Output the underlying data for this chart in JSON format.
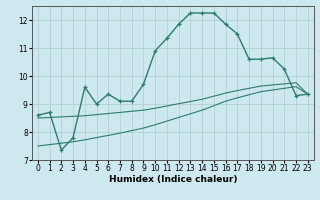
{
  "xlabel": "Humidex (Indice chaleur)",
  "xlim": [
    -0.5,
    23.5
  ],
  "ylim": [
    7,
    12.5
  ],
  "yticks": [
    7,
    8,
    9,
    10,
    11,
    12
  ],
  "xticks": [
    0,
    1,
    2,
    3,
    4,
    5,
    6,
    7,
    8,
    9,
    10,
    11,
    12,
    13,
    14,
    15,
    16,
    17,
    18,
    19,
    20,
    21,
    22,
    23
  ],
  "background_color": "#cde8ee",
  "grid_color": "#aacccc",
  "line_color": "#2d7d6e",
  "line1_x": [
    0,
    1,
    2,
    3,
    4,
    5,
    6,
    7,
    8,
    9,
    10,
    11,
    12,
    13,
    14,
    15,
    16,
    17,
    18,
    19,
    20,
    21,
    22,
    23
  ],
  "line1_y": [
    8.6,
    8.7,
    7.35,
    7.8,
    9.6,
    9.0,
    9.35,
    9.1,
    9.1,
    9.7,
    10.9,
    11.35,
    11.85,
    12.25,
    12.25,
    12.25,
    11.85,
    11.5,
    10.6,
    10.6,
    10.65,
    10.25,
    9.3,
    9.35
  ],
  "line2_x": [
    0,
    1,
    2,
    3,
    4,
    5,
    6,
    7,
    8,
    9,
    10,
    11,
    12,
    13,
    14,
    15,
    16,
    17,
    18,
    19,
    20,
    21,
    22,
    23
  ],
  "line2_y": [
    8.5,
    8.52,
    8.54,
    8.56,
    8.58,
    8.62,
    8.66,
    8.7,
    8.74,
    8.78,
    8.85,
    8.93,
    9.01,
    9.09,
    9.17,
    9.28,
    9.39,
    9.48,
    9.56,
    9.64,
    9.68,
    9.72,
    9.76,
    9.35
  ],
  "line3_x": [
    0,
    1,
    2,
    3,
    4,
    5,
    6,
    7,
    8,
    9,
    10,
    11,
    12,
    13,
    14,
    15,
    16,
    17,
    18,
    19,
    20,
    21,
    22,
    23
  ],
  "line3_y": [
    7.5,
    7.55,
    7.6,
    7.65,
    7.72,
    7.8,
    7.88,
    7.96,
    8.05,
    8.14,
    8.26,
    8.39,
    8.52,
    8.65,
    8.78,
    8.94,
    9.1,
    9.22,
    9.33,
    9.44,
    9.5,
    9.56,
    9.62,
    9.35
  ]
}
